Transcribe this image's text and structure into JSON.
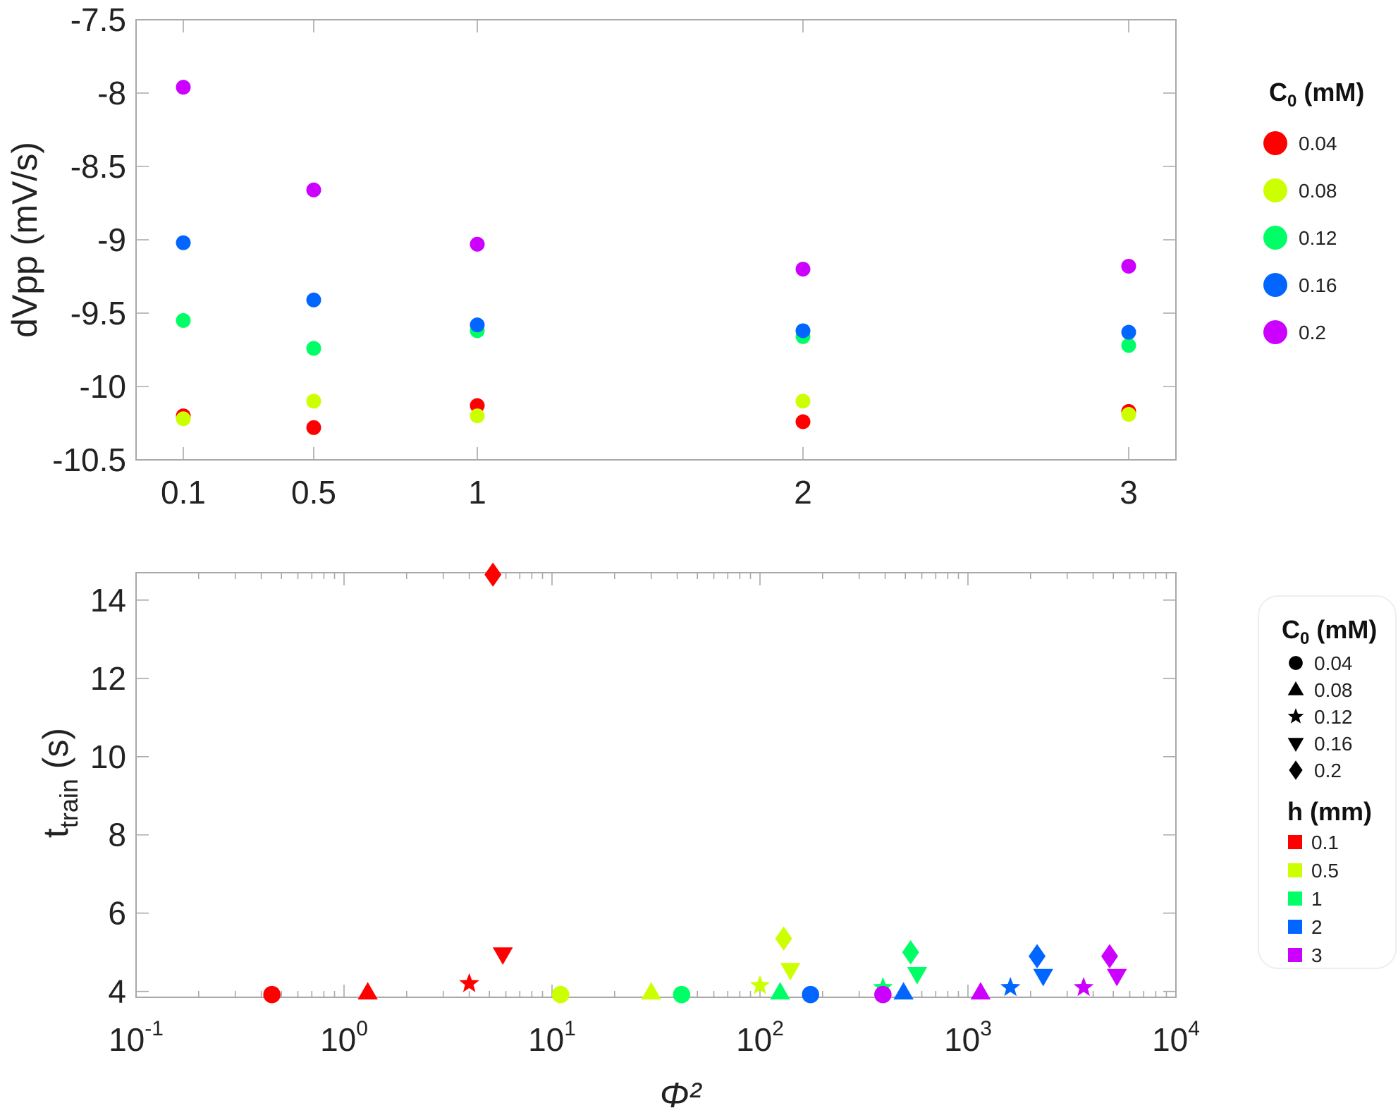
{
  "chart_data": [
    {
      "type": "scatter",
      "title": "",
      "xlabel": "",
      "ylabel": "dVpp (mV/s)",
      "x_scale": "categorical",
      "categories": [
        "0.1",
        "0.5",
        "1",
        "2",
        "3"
      ],
      "x_values": [
        0.1,
        0.5,
        1,
        2,
        3
      ],
      "ylim": [
        -10.5,
        -7.5
      ],
      "yticks": [
        "-7.5",
        "-8",
        "-8.5",
        "-9",
        "-9.5",
        "-10",
        "-10.5"
      ],
      "ytick_values": [
        -7.5,
        -8,
        -8.5,
        -9,
        -9.5,
        -10,
        -10.5
      ],
      "grid": false,
      "legend": {
        "title_main": "C",
        "title_sub": "0",
        "title_unit": " (mM)",
        "placement": "right"
      },
      "series": [
        {
          "name": "0.04",
          "color": "#ff0000",
          "values": [
            -10.2,
            -10.28,
            -10.13,
            -10.24,
            -10.17
          ]
        },
        {
          "name": "0.08",
          "color": "#ccff00",
          "values": [
            -10.22,
            -10.1,
            -10.2,
            -10.1,
            -10.19
          ]
        },
        {
          "name": "0.12",
          "color": "#00ff66",
          "values": [
            -9.55,
            -9.74,
            -9.62,
            -9.66,
            -9.72
          ]
        },
        {
          "name": "0.16",
          "color": "#0066ff",
          "values": [
            -9.02,
            -9.41,
            -9.58,
            -9.62,
            -9.63
          ]
        },
        {
          "name": "0.2",
          "color": "#cc00ff",
          "values": [
            -7.96,
            -8.66,
            -9.03,
            -9.2,
            -9.18
          ]
        }
      ]
    },
    {
      "type": "scatter",
      "title": "",
      "xlabel": "Φ²",
      "ylabel_main": "t",
      "ylabel_sub": "train",
      "ylabel_unit": " (s)",
      "x_scale": "log",
      "xlim": [
        0.1,
        10000
      ],
      "xticks": [
        {
          "base": "10",
          "exp": "-1",
          "value": 0.1
        },
        {
          "base": "10",
          "exp": "0",
          "value": 1
        },
        {
          "base": "10",
          "exp": "1",
          "value": 10
        },
        {
          "base": "10",
          "exp": "2",
          "value": 100
        },
        {
          "base": "10",
          "exp": "3",
          "value": 1000
        },
        {
          "base": "10",
          "exp": "4",
          "value": 10000
        }
      ],
      "ylim": [
        3.85,
        14.7
      ],
      "yticks": [
        "4",
        "6",
        "8",
        "10",
        "12",
        "14"
      ],
      "ytick_values": [
        4,
        6,
        8,
        10,
        12,
        14
      ],
      "grid": false,
      "legend_shape": {
        "title_main": "C",
        "title_sub": "0",
        "title_unit": " (mM)",
        "entries": [
          {
            "label": "0.04",
            "marker": "circle"
          },
          {
            "label": "0.08",
            "marker": "triangle-up"
          },
          {
            "label": "0.12",
            "marker": "star"
          },
          {
            "label": "0.16",
            "marker": "triangle-down"
          },
          {
            "label": "0.2",
            "marker": "diamond"
          }
        ]
      },
      "legend_color": {
        "title": "h (mm)",
        "entries": [
          {
            "label": "0.1",
            "color": "#ff0000"
          },
          {
            "label": "0.5",
            "color": "#ccff00"
          },
          {
            "label": "1",
            "color": "#00ff66"
          },
          {
            "label": "2",
            "color": "#0066ff"
          },
          {
            "label": "3",
            "color": "#cc00ff"
          }
        ]
      },
      "points": [
        {
          "x": 0.45,
          "y": 3.92,
          "marker": "circle",
          "color": "#ff0000"
        },
        {
          "x": 1.3,
          "y": 3.97,
          "marker": "triangle-up",
          "color": "#ff0000"
        },
        {
          "x": 4,
          "y": 4.2,
          "marker": "star",
          "color": "#ff0000"
        },
        {
          "x": 5.8,
          "y": 4.95,
          "marker": "triangle-down",
          "color": "#ff0000"
        },
        {
          "x": 5.2,
          "y": 14.65,
          "marker": "diamond",
          "color": "#ff0000"
        },
        {
          "x": 11,
          "y": 3.92,
          "marker": "circle",
          "color": "#ccff00"
        },
        {
          "x": 30,
          "y": 3.97,
          "marker": "triangle-up",
          "color": "#ccff00"
        },
        {
          "x": 100,
          "y": 4.15,
          "marker": "star",
          "color": "#ccff00"
        },
        {
          "x": 140,
          "y": 4.55,
          "marker": "triangle-down",
          "color": "#ccff00"
        },
        {
          "x": 130,
          "y": 5.35,
          "marker": "diamond",
          "color": "#ccff00"
        },
        {
          "x": 42,
          "y": 3.92,
          "marker": "circle",
          "color": "#00ff66"
        },
        {
          "x": 125,
          "y": 3.97,
          "marker": "triangle-up",
          "color": "#00ff66"
        },
        {
          "x": 390,
          "y": 4.1,
          "marker": "star",
          "color": "#00ff66"
        },
        {
          "x": 570,
          "y": 4.45,
          "marker": "triangle-down",
          "color": "#00ff66"
        },
        {
          "x": 530,
          "y": 5,
          "marker": "diamond",
          "color": "#00ff66"
        },
        {
          "x": 175,
          "y": 3.92,
          "marker": "circle",
          "color": "#0066ff"
        },
        {
          "x": 490,
          "y": 3.97,
          "marker": "triangle-up",
          "color": "#0066ff"
        },
        {
          "x": 1600,
          "y": 4.1,
          "marker": "star",
          "color": "#0066ff"
        },
        {
          "x": 2300,
          "y": 4.4,
          "marker": "triangle-down",
          "color": "#0066ff"
        },
        {
          "x": 2150,
          "y": 4.9,
          "marker": "diamond",
          "color": "#0066ff"
        },
        {
          "x": 390,
          "y": 3.92,
          "marker": "circle",
          "color": "#cc00ff"
        },
        {
          "x": 1150,
          "y": 3.97,
          "marker": "triangle-up",
          "color": "#cc00ff"
        },
        {
          "x": 3600,
          "y": 4.1,
          "marker": "star",
          "color": "#cc00ff"
        },
        {
          "x": 5200,
          "y": 4.4,
          "marker": "triangle-down",
          "color": "#cc00ff"
        },
        {
          "x": 4800,
          "y": 4.9,
          "marker": "diamond",
          "color": "#cc00ff"
        }
      ]
    }
  ]
}
